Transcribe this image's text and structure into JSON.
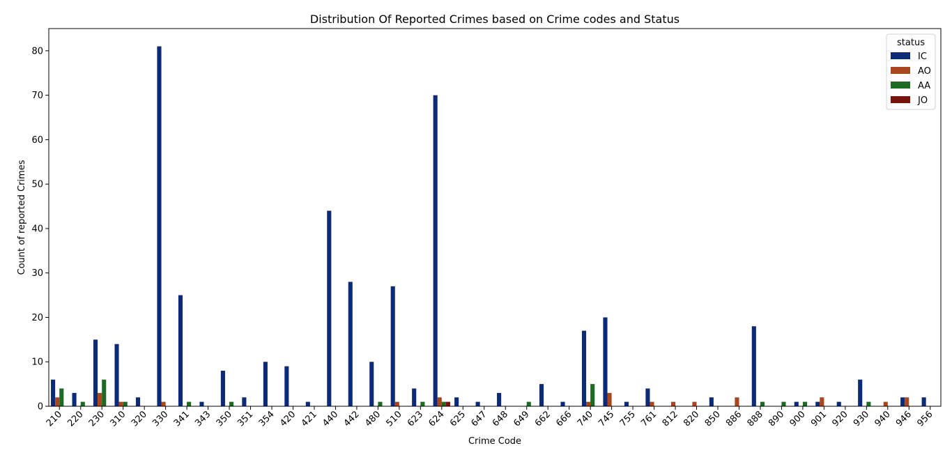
{
  "chart_data": {
    "type": "bar",
    "title": "Distribution Of Reported Crimes based on Crime codes and Status",
    "xlabel": "Crime Code",
    "ylabel": "Count of reported Crimes",
    "ylim": [
      0,
      85
    ],
    "yticks": [
      0,
      10,
      20,
      30,
      40,
      50,
      60,
      70,
      80
    ],
    "grid": false,
    "legend": {
      "title": "status",
      "placement": "top-right"
    },
    "categories": [
      "210",
      "220",
      "230",
      "310",
      "320",
      "330",
      "341",
      "343",
      "350",
      "351",
      "354",
      "420",
      "421",
      "440",
      "442",
      "480",
      "510",
      "623",
      "624",
      "625",
      "647",
      "648",
      "649",
      "662",
      "666",
      "740",
      "745",
      "755",
      "761",
      "812",
      "820",
      "850",
      "886",
      "888",
      "890",
      "900",
      "901",
      "920",
      "930",
      "940",
      "946",
      "956"
    ],
    "series": [
      {
        "name": "IC",
        "color": "#0d2a78",
        "values": [
          6,
          3,
          15,
          14,
          2,
          81,
          25,
          1,
          8,
          2,
          10,
          9,
          1,
          44,
          28,
          10,
          27,
          4,
          70,
          2,
          1,
          3,
          0,
          5,
          1,
          17,
          20,
          1,
          4,
          0,
          0,
          2,
          0,
          18,
          0,
          1,
          1,
          1,
          6,
          0,
          2,
          2
        ]
      },
      {
        "name": "AO",
        "color": "#a9461f",
        "values": [
          2,
          0,
          3,
          1,
          0,
          1,
          0,
          0,
          0,
          0,
          0,
          0,
          0,
          0,
          0,
          0,
          1,
          0,
          2,
          0,
          0,
          0,
          0,
          0,
          0,
          1,
          3,
          0,
          1,
          1,
          1,
          0,
          2,
          0,
          0,
          0,
          2,
          0,
          0,
          1,
          2,
          0
        ]
      },
      {
        "name": "AA",
        "color": "#1d6a22",
        "values": [
          4,
          1,
          6,
          1,
          0,
          0,
          1,
          0,
          1,
          0,
          0,
          0,
          0,
          0,
          0,
          1,
          0,
          1,
          1,
          0,
          0,
          0,
          1,
          0,
          0,
          5,
          0,
          0,
          0,
          0,
          0,
          0,
          0,
          1,
          1,
          1,
          0,
          0,
          1,
          0,
          0,
          0
        ]
      },
      {
        "name": "JO",
        "color": "#7d110d",
        "values": [
          0,
          0,
          0,
          0,
          0,
          0,
          0,
          0,
          0,
          0,
          0,
          0,
          0,
          0,
          0,
          0,
          0,
          0,
          1,
          0,
          0,
          0,
          0,
          0,
          0,
          0,
          0,
          0,
          0,
          0,
          0,
          0,
          0,
          0,
          0,
          0,
          0,
          0,
          0,
          0,
          0,
          0
        ]
      }
    ]
  }
}
